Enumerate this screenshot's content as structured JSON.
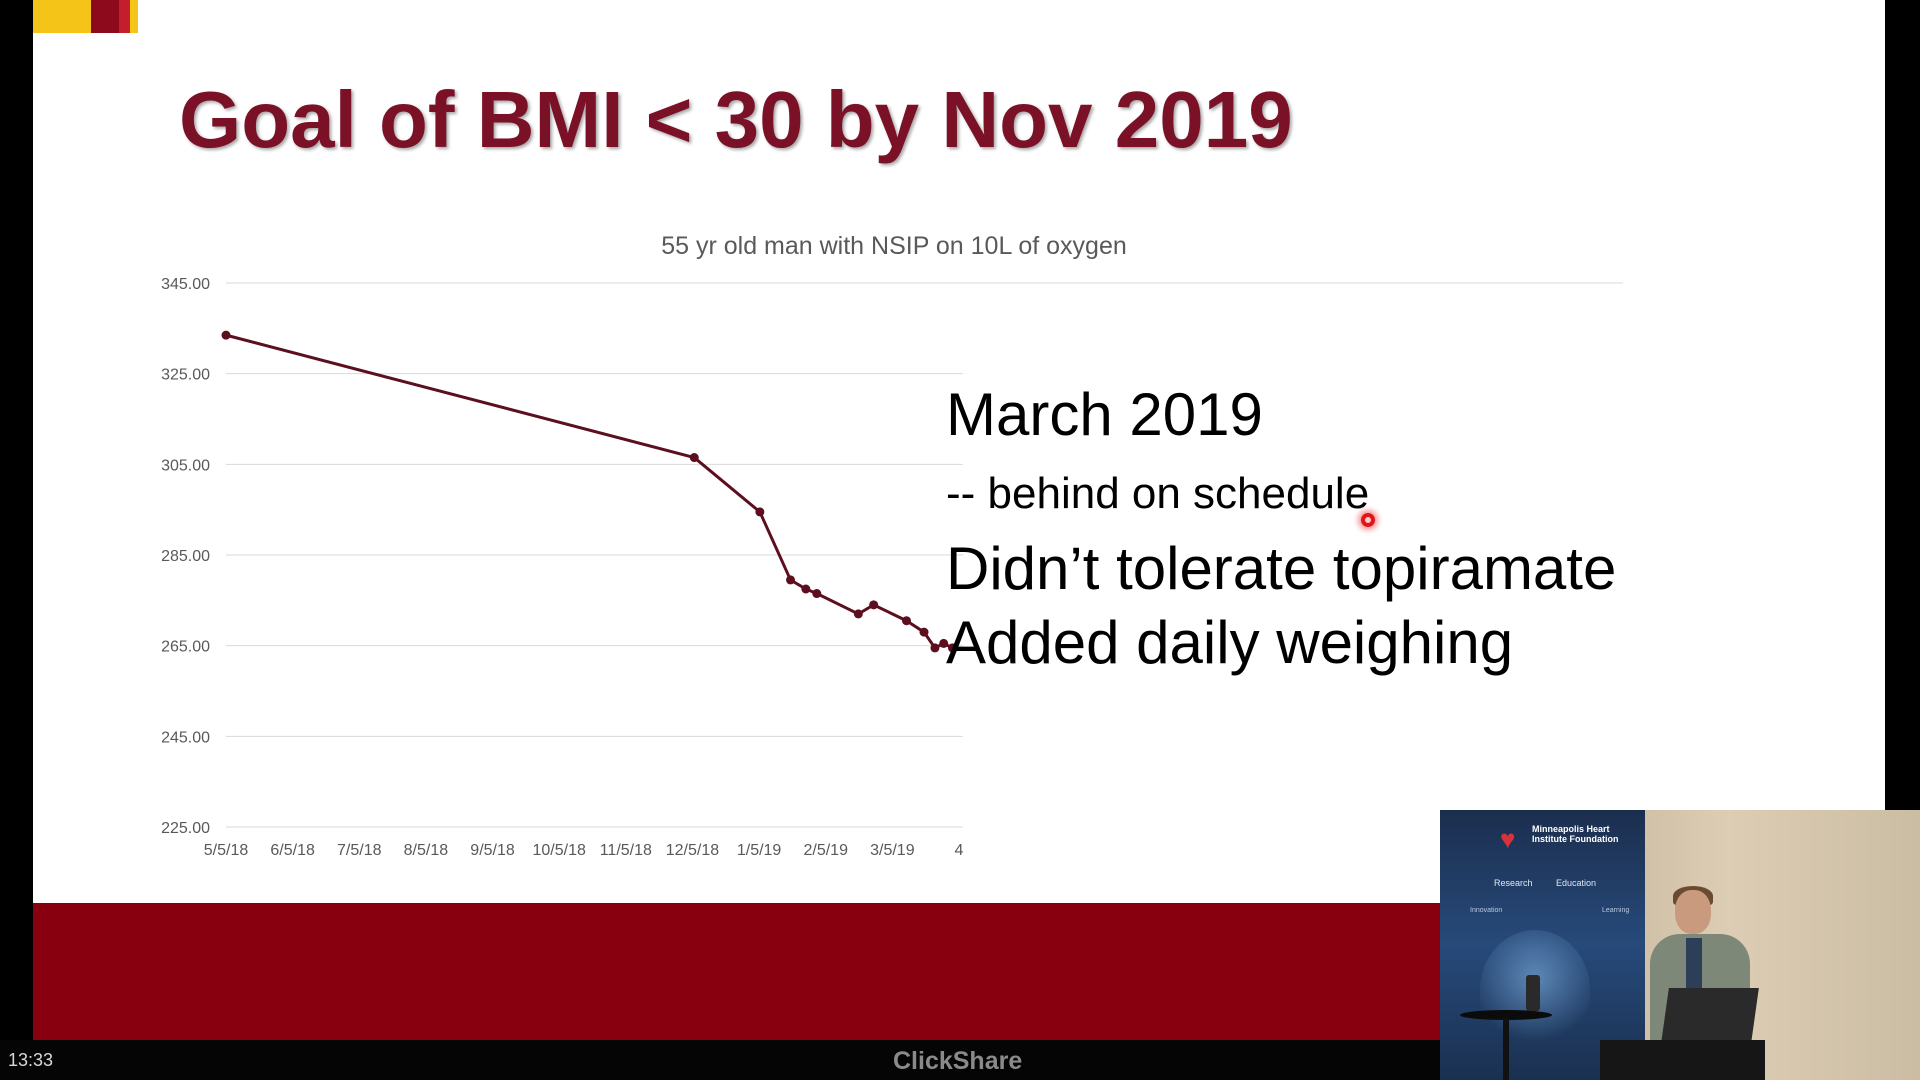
{
  "slide": {
    "title": "Goal of BMI < 30 by Nov 2019",
    "notes": [
      "March 2019",
      "-- behind on schedule",
      "Didn’t tolerate topiramate",
      "Added daily weighing"
    ],
    "brand_colors": {
      "title": "#7a1127",
      "footer_band": "#88000f",
      "line": "#5c0f1e",
      "logo_gold": "#f5c418"
    }
  },
  "chart_data": {
    "type": "line",
    "title": "55 yr old man with NSIP on 10L of oxygen",
    "xlabel": "",
    "ylabel": "",
    "ylim": [
      225,
      345
    ],
    "yticks": [
      "345.00",
      "325.00",
      "305.00",
      "285.00",
      "265.00",
      "245.00",
      "225.00"
    ],
    "xticks": [
      "5/5/18",
      "6/5/18",
      "7/5/18",
      "8/5/18",
      "9/5/18",
      "10/5/18",
      "11/5/18",
      "12/5/18",
      "1/5/19",
      "2/5/19",
      "3/5/19",
      "4"
    ],
    "x_range": [
      "2018-05-05",
      "2019-04-05"
    ],
    "grid": true,
    "series": [
      {
        "color": "#5c0f1e",
        "points": [
          {
            "x": "2018-05-05",
            "y": 333.5
          },
          {
            "x": "2018-12-05",
            "y": 306.5
          },
          {
            "x": "2019-01-04",
            "y": 294.5
          },
          {
            "x": "2019-01-18",
            "y": 279.5
          },
          {
            "x": "2019-01-25",
            "y": 277.5
          },
          {
            "x": "2019-01-30",
            "y": 276.5
          },
          {
            "x": "2019-02-18",
            "y": 272.0
          },
          {
            "x": "2019-02-25",
            "y": 274.0
          },
          {
            "x": "2019-03-12",
            "y": 270.5
          },
          {
            "x": "2019-03-20",
            "y": 268.0
          },
          {
            "x": "2019-03-25",
            "y": 264.5
          },
          {
            "x": "2019-03-29",
            "y": 265.5
          },
          {
            "x": "2019-04-02",
            "y": 264.5
          }
        ]
      }
    ]
  },
  "status_bar": {
    "clock": "13:33",
    "source_label": "ClickShare"
  },
  "presenter_video": {
    "banner_title": "Minneapolis Heart Institute Foundation",
    "banner_items": [
      "Research",
      "Education",
      "Innovation",
      "Learning"
    ]
  }
}
